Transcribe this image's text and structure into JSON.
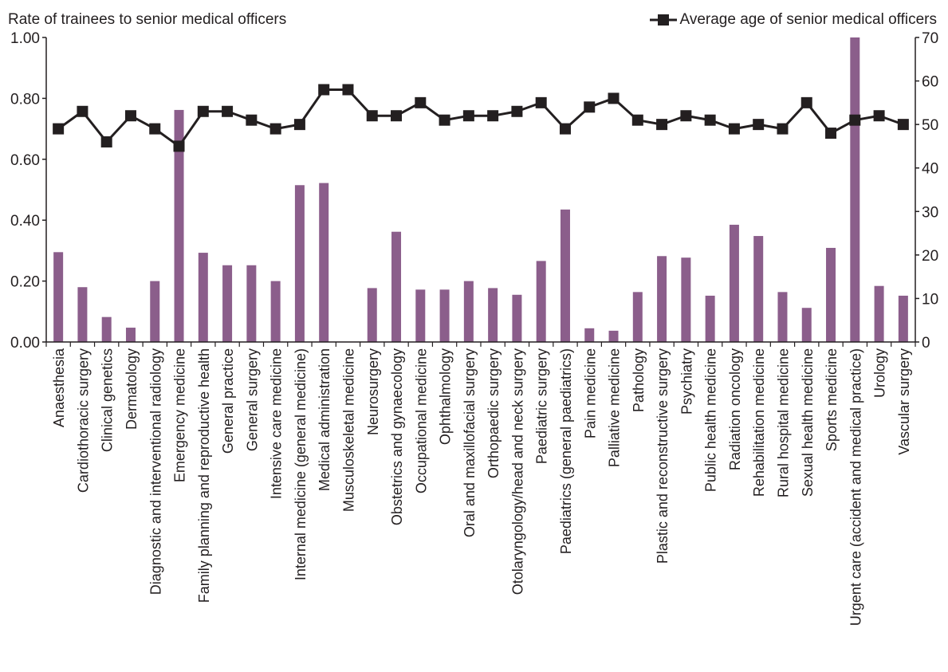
{
  "chart_data": {
    "type": "bar",
    "ylabel": "Rate of trainees to senior medical officers",
    "ylim": [
      0,
      1
    ],
    "y_ticks": [
      "0.00",
      "0.20",
      "0.40",
      "0.60",
      "0.80",
      "1.00"
    ],
    "y2_ticks": [
      "0",
      "10",
      "20",
      "30",
      "40",
      "50",
      "60",
      "70"
    ],
    "y2lim": [
      0,
      70
    ],
    "legend_position": "top-right",
    "grid": false,
    "bar_color": "#8b5e8b",
    "line_color": "#231f20",
    "categories": [
      "Anaesthesia",
      "Cardiothoracic surgery",
      "Clinical genetics",
      "Dermatology",
      "Diagnostic and interventional radiology",
      "Emergency medicine",
      "Family planning and reproductive health",
      "General practice",
      "General surgery",
      "Intensive care medicine",
      "Internal medicine (general medicine)",
      "Medical administration",
      "Musculoskeletal medicine",
      "Neurosurgery",
      "Obstetrics and gynaecology",
      "Occupational medicine",
      "Ophthalmology",
      "Oral and maxillofacial surgery",
      "Orthopaedic surgery",
      "Otolaryngology/head and neck surgery",
      "Paediatric surgery",
      "Paediatrics (general paediatrics)",
      "Pain medicine",
      "Palliative medicine",
      "Pathology",
      "Plastic and reconstructive surgery",
      "Psychiatry",
      "Public health medicine",
      "Radiation oncology",
      "Rehabilitation medicine",
      "Rural hospital medicine",
      "Sexual health medicine",
      "Sports medicine",
      "Urgent care (accident and medical practice)",
      "Urology",
      "Vascular surgery"
    ],
    "series": [
      {
        "type": "bar",
        "axis": "left",
        "values": [
          0.295,
          0.18,
          0.082,
          0.047,
          0.2,
          0.762,
          0.293,
          0.252,
          0.252,
          0.2,
          0.515,
          0.522,
          0.0,
          0.177,
          0.362,
          0.172,
          0.172,
          0.2,
          0.177,
          0.155,
          0.266,
          0.435,
          0.045,
          0.037,
          0.164,
          0.282,
          0.277,
          0.152,
          0.385,
          0.348,
          0.164,
          0.112,
          0.309,
          1.0,
          0.184,
          0.152
        ]
      },
      {
        "name": "Average age of senior medical officers",
        "type": "line",
        "axis": "right",
        "values": [
          49,
          53,
          46,
          52,
          49,
          45,
          53,
          53,
          51,
          49,
          50,
          58,
          58,
          52,
          52,
          55,
          51,
          52,
          52,
          53,
          55,
          49,
          54,
          56,
          51,
          50,
          52,
          51,
          49,
          50,
          49,
          55,
          48,
          51,
          52,
          50
        ]
      }
    ]
  }
}
